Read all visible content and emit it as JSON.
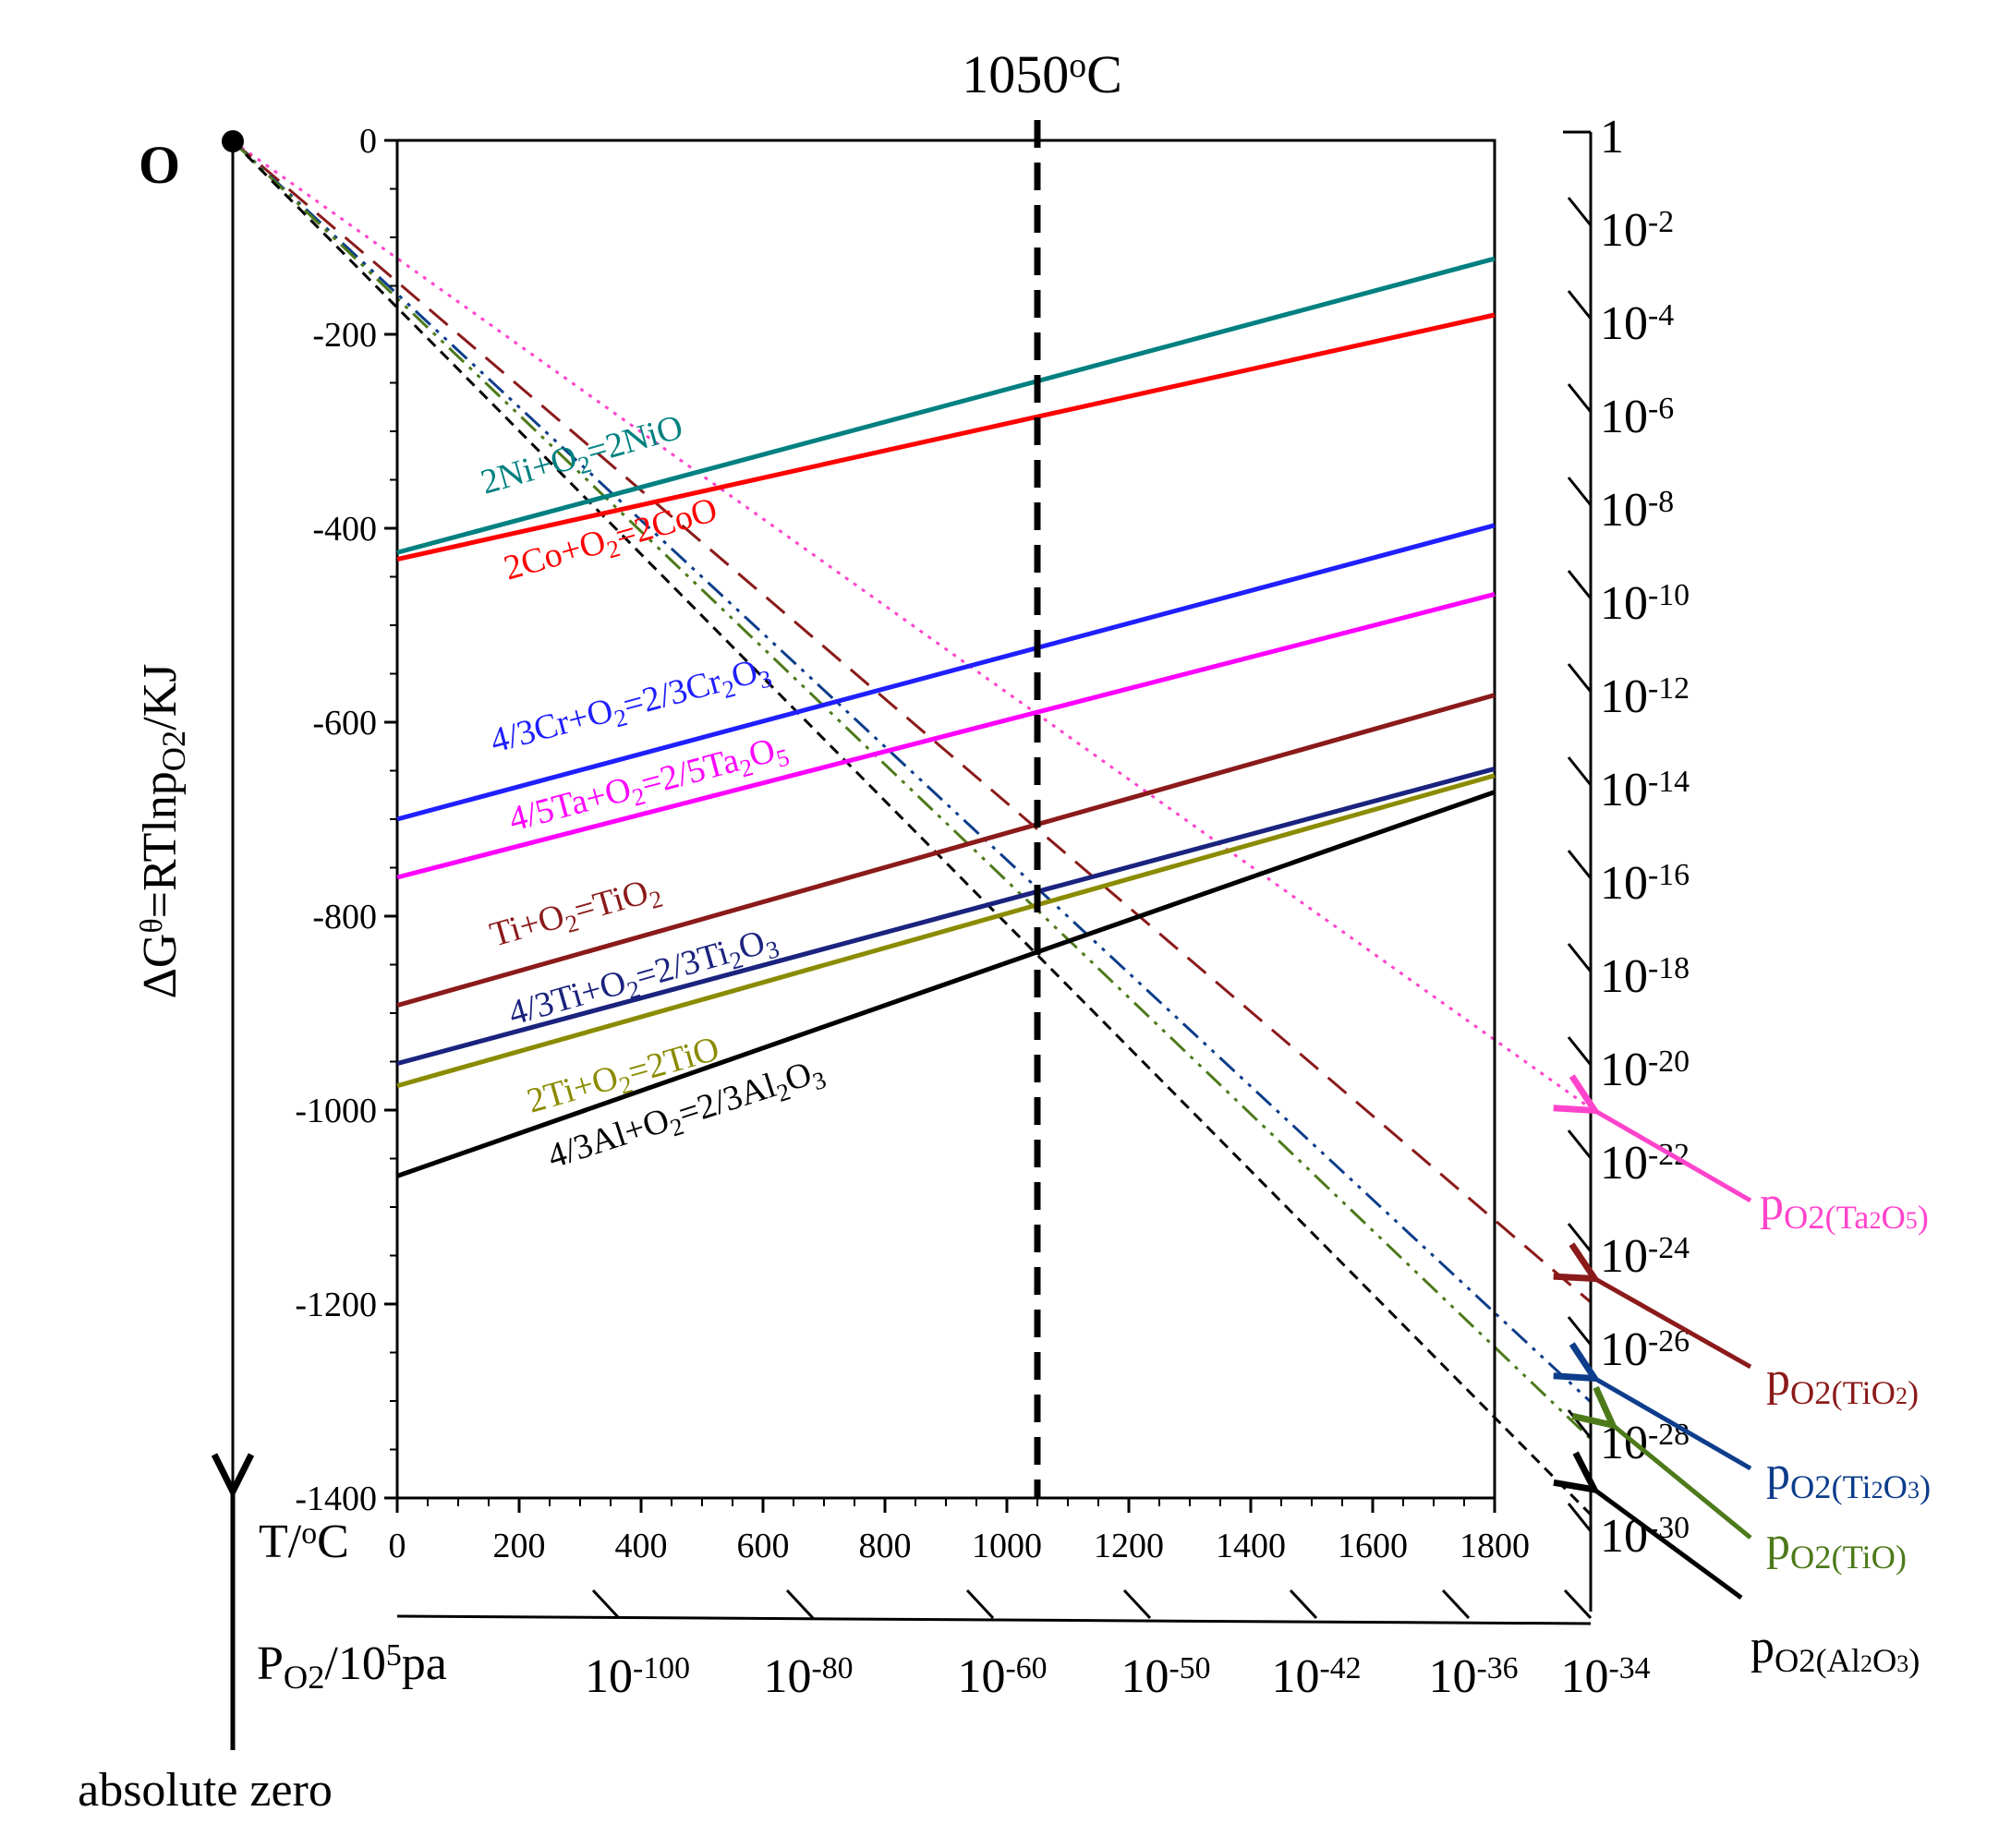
{
  "chart_data": {
    "type": "line",
    "title": "1050°C",
    "title_main": "1050",
    "title_sup": "o",
    "title_tail": "C",
    "xlabel": {
      "main": "T/",
      "sup": "o",
      "tail": "C"
    },
    "ylabel": "ΔGθ=RTlnpO2/KJ",
    "ylabel_parts": {
      "pre": "ΔG",
      "sup": "θ",
      "mid": "=RTlnp",
      "sub": "O2",
      "tail": "/KJ"
    },
    "xlim": [
      0,
      1800
    ],
    "ylim": [
      -1400,
      0
    ],
    "x_ticks": [
      0,
      200,
      400,
      600,
      800,
      1000,
      1200,
      1400,
      1600,
      1800
    ],
    "x_tick_labels": [
      "0",
      "200",
      "400",
      "600",
      "800",
      "1000",
      "1200",
      "1400",
      "1600",
      "1800"
    ],
    "y_ticks": [
      0,
      -200,
      -400,
      -600,
      -800,
      -1000,
      -1200,
      -1400
    ],
    "y_tick_labels": [
      "0",
      "-200",
      "-400",
      "-600",
      "-800",
      "-1000",
      "-1200",
      "-1400"
    ],
    "vertical_marker": {
      "x": 1050,
      "label": "1050°C"
    },
    "series": [
      {
        "name": "2Ni+O2=2NiO",
        "color": "#008080",
        "x": [
          0,
          1800
        ],
        "y": [
          -425,
          -122
        ],
        "label_parts": [
          [
            "2Ni+O",
            ""
          ],
          [
            "2",
            "sub"
          ],
          [
            "=2NiO",
            ""
          ]
        ]
      },
      {
        "name": "2Co+O2=2CoO",
        "color": "#ff0000",
        "x": [
          0,
          1800
        ],
        "y": [
          -432,
          -180
        ],
        "label_parts": [
          [
            "2Co+O",
            ""
          ],
          [
            "2",
            "sub"
          ],
          [
            "=2CoO",
            ""
          ]
        ]
      },
      {
        "name": "4/3Cr+O2=2/3Cr2O3",
        "color": "#1f1fff",
        "x": [
          0,
          1800
        ],
        "y": [
          -700,
          -397
        ],
        "label_parts": [
          [
            "4/3Cr+O",
            ""
          ],
          [
            "2",
            "sub"
          ],
          [
            "=2/3Cr",
            ""
          ],
          [
            "2",
            "sub"
          ],
          [
            "O",
            ""
          ],
          [
            "3",
            "sub"
          ]
        ]
      },
      {
        "name": "4/5Ta+O2=2/5Ta2O5",
        "color": "#ff00ff",
        "x": [
          0,
          1800
        ],
        "y": [
          -760,
          -468
        ],
        "label_parts": [
          [
            "4/5Ta+O",
            ""
          ],
          [
            "2",
            "sub"
          ],
          [
            "=2/5Ta",
            ""
          ],
          [
            "2",
            "sub"
          ],
          [
            "O",
            ""
          ],
          [
            "5",
            "sub"
          ]
        ]
      },
      {
        "name": "Ti+O2=TiO2",
        "color": "#8b1a1a",
        "x": [
          0,
          1800
        ],
        "y": [
          -892,
          -572
        ],
        "label_parts": [
          [
            "Ti+O",
            ""
          ],
          [
            "2",
            "sub"
          ],
          [
            "=TiO",
            ""
          ],
          [
            "2",
            "sub"
          ]
        ]
      },
      {
        "name": "4/3Ti+O2=2/3Ti2O3",
        "color": "#1a237e",
        "x": [
          0,
          1800
        ],
        "y": [
          -952,
          -648
        ],
        "label_parts": [
          [
            "4/3Ti+O",
            ""
          ],
          [
            "2",
            "sub"
          ],
          [
            "=2/3Ti",
            ""
          ],
          [
            "2",
            "sub"
          ],
          [
            "O",
            ""
          ],
          [
            "3",
            "sub"
          ]
        ]
      },
      {
        "name": "2Ti+O2=2TiO",
        "color": "#8b8b00",
        "x": [
          0,
          1800
        ],
        "y": [
          -975,
          -655
        ],
        "label_parts": [
          [
            "2Ti+O",
            ""
          ],
          [
            "2",
            "sub"
          ],
          [
            "=2TiO",
            ""
          ]
        ]
      },
      {
        "name": "4/3Al+O2=2/3Al2O3",
        "color": "#000000",
        "x": [
          0,
          1800
        ],
        "y": [
          -1068,
          -672
        ],
        "label_parts": [
          [
            "4/3Al+O",
            ""
          ],
          [
            "2",
            "sub"
          ],
          [
            "=2/3Al",
            ""
          ],
          [
            "2",
            "sub"
          ],
          [
            "O",
            ""
          ],
          [
            "3",
            "sub"
          ]
        ]
      }
    ],
    "rays": [
      {
        "name": "pO2(Ta2O5)",
        "color": "#ff44cc",
        "style": "dotted",
        "end_right_scale": "10^-22"
      },
      {
        "name": "pO2(TiO2)",
        "color": "#8b1a1a",
        "style": "long-dash",
        "end_right_scale": "10^-26"
      },
      {
        "name": "pO2(Ti2O3)",
        "color": "#0d3d8b",
        "style": "dash-dot-dot",
        "end_right_scale": "10^-28"
      },
      {
        "name": "pO2(TiO)",
        "color": "#4d7a1a",
        "style": "dash-dot-dot",
        "end_right_scale": "10^-29"
      },
      {
        "name": "pO2(Al2O3)",
        "color": "#000000",
        "style": "short-dash",
        "end_right_scale": "10^-30"
      }
    ],
    "origin_label": "O",
    "absolute_zero_label": "absolute zero",
    "po2_axis_label": {
      "main": "P",
      "sub": "O2",
      "mid": "/10",
      "sup": "5",
      "tail": "pa"
    },
    "po2_bottom_scale": [
      {
        "base": "10",
        "exp": "-100"
      },
      {
        "base": "10",
        "exp": "-80"
      },
      {
        "base": "10",
        "exp": "-60"
      },
      {
        "base": "10",
        "exp": "-50"
      },
      {
        "base": "10",
        "exp": "-42"
      },
      {
        "base": "10",
        "exp": "-36"
      },
      {
        "base": "10",
        "exp": "-34"
      }
    ],
    "po2_right_scale": [
      {
        "base": "1",
        "exp": ""
      },
      {
        "base": "10",
        "exp": "-2"
      },
      {
        "base": "10",
        "exp": "-4"
      },
      {
        "base": "10",
        "exp": "-6"
      },
      {
        "base": "10",
        "exp": "-8"
      },
      {
        "base": "10",
        "exp": "-10"
      },
      {
        "base": "10",
        "exp": "-12"
      },
      {
        "base": "10",
        "exp": "-14"
      },
      {
        "base": "10",
        "exp": "-16"
      },
      {
        "base": "10",
        "exp": "-18"
      },
      {
        "base": "10",
        "exp": "-20"
      },
      {
        "base": "10",
        "exp": "-22"
      },
      {
        "base": "10",
        "exp": "-24"
      },
      {
        "base": "10",
        "exp": "-26"
      },
      {
        "base": "10",
        "exp": "-28"
      },
      {
        "base": "10",
        "exp": "-30"
      }
    ],
    "side_labels": [
      {
        "name": "pO2(Ta2O5)",
        "color": "#ff44cc",
        "parts": [
          [
            "p",
            ""
          ],
          [
            "O",
            "sub"
          ],
          [
            "2(Ta",
            "sub"
          ],
          [
            "2",
            "subsub"
          ],
          [
            "O",
            "sub"
          ],
          [
            "5",
            "subsub"
          ],
          [
            ")",
            "sub"
          ]
        ]
      },
      {
        "name": "pO2(TiO2)",
        "color": "#8b1a1a",
        "parts": [
          [
            "p",
            ""
          ],
          [
            "O",
            "sub"
          ],
          [
            "2(TiO",
            "sub"
          ],
          [
            "2",
            "subsub"
          ],
          [
            ")",
            "sub"
          ]
        ]
      },
      {
        "name": "pO2(Ti2O3)",
        "color": "#0d3d8b",
        "parts": [
          [
            "p",
            ""
          ],
          [
            "O",
            "sub"
          ],
          [
            "2(Ti",
            "sub"
          ],
          [
            "2",
            "subsub"
          ],
          [
            "O",
            "sub"
          ],
          [
            "3",
            "subsub"
          ],
          [
            ")",
            "sub"
          ]
        ]
      },
      {
        "name": "pO2(TiO)",
        "color": "#4d7a1a",
        "parts": [
          [
            "p",
            ""
          ],
          [
            "O",
            "sub"
          ],
          [
            "2(TiO)",
            "sub"
          ]
        ]
      },
      {
        "name": "pO2(Al2O3)",
        "color": "#000000",
        "parts": [
          [
            "p",
            ""
          ],
          [
            "O",
            "sub"
          ],
          [
            "2(Al",
            "sub"
          ],
          [
            "2",
            "subsub"
          ],
          [
            "O",
            "sub"
          ],
          [
            "3",
            "subsub"
          ],
          [
            ")",
            "sub"
          ]
        ]
      }
    ]
  }
}
